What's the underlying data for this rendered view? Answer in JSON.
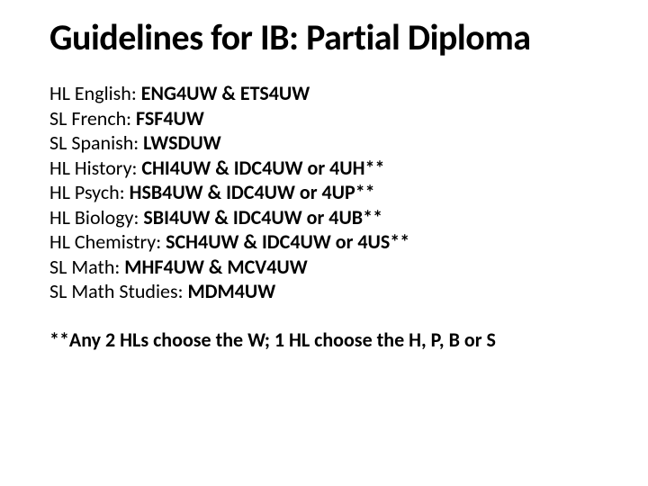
{
  "title": "Guidelines for IB: Partial Diploma",
  "courses": [
    {
      "label": "HL English: ",
      "codes": "ENG4UW & ETS4UW"
    },
    {
      "label": "SL French: ",
      "codes": "FSF4UW"
    },
    {
      "label": "SL Spanish: ",
      "codes": "LWSDUW"
    },
    {
      "label": "HL History: ",
      "codes": "CHI4UW & IDC4UW or 4UH**"
    },
    {
      "label": "HL Psych: ",
      "codes": "HSB4UW & IDC4UW or 4UP**"
    },
    {
      "label": "HL Biology: ",
      "codes": "SBI4UW & IDC4UW or 4UB**"
    },
    {
      "label": "HL Chemistry: ",
      "codes": "SCH4UW & IDC4UW or 4US**"
    },
    {
      "label": "SL Math:  ",
      "codes": "MHF4UW & MCV4UW"
    },
    {
      "label": "SL Math Studies: ",
      "codes": "MDM4UW"
    }
  ],
  "footnote": "**Any 2 HLs choose the W; 1 HL choose the H, P, B or S",
  "style": {
    "background_color": "#ffffff",
    "text_color": "#000000",
    "title_fontsize": 40,
    "body_fontsize": 22,
    "title_weight": 700,
    "code_weight": 700,
    "font_family": "Calibri"
  }
}
